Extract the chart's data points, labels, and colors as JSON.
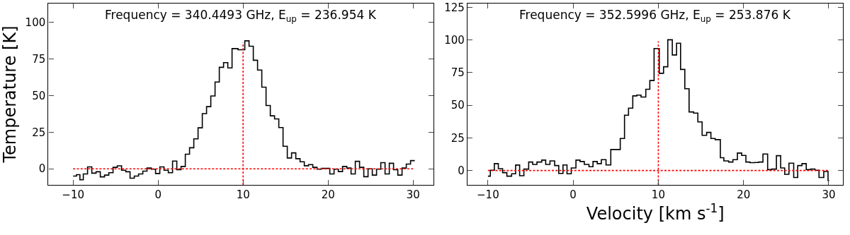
{
  "chart_data": [
    {
      "type": "step",
      "ylabel": "Temperature [K]",
      "annotations": [
        "Frequency = 340.4493 GHz, E$_{up}$ = 236.954 K"
      ],
      "xlim": [
        -12.9,
        32.4
      ],
      "ylim": [
        -11,
        113
      ],
      "xticks": [
        -10,
        0,
        10,
        20,
        30
      ],
      "yticks": [
        0,
        25,
        50,
        75,
        100
      ],
      "series": [
        {
          "color": "#000000",
          "x": [
            -10,
            -9.6,
            -9.2,
            -8.8,
            -8.3,
            -7.8,
            -7.3,
            -6.8,
            -6.3,
            -5.8,
            -5.3,
            -4.8,
            -4.3,
            -3.8,
            -3.3,
            -2.8,
            -2.3,
            -1.8,
            -1.3,
            -0.8,
            -0.3,
            0.2,
            0.7,
            1.2,
            1.7,
            2.2,
            2.7,
            3.2,
            3.7,
            4.2,
            4.7,
            5.2,
            5.7,
            6.2,
            6.7,
            7.2,
            7.7,
            8.2,
            8.7,
            9.4,
            10.2,
            10.7,
            11.2,
            11.7,
            12.2,
            12.7,
            13.2,
            13.7,
            14.2,
            14.7,
            15.2,
            15.7,
            16.2,
            16.7,
            17.2,
            17.7,
            18.2,
            18.7,
            19.2,
            19.7,
            20.2,
            20.7,
            21.2,
            21.7,
            22.2,
            22.7,
            23.2,
            23.7,
            24.2,
            24.7,
            25.2,
            25.7,
            26.2,
            26.7,
            27.2,
            27.7,
            28.2,
            28.7,
            29.2,
            29.7,
            30.2
          ],
          "values": [
            -5,
            -4,
            -7.5,
            -3.5,
            1.3,
            -3,
            -2,
            -5.5,
            -4.3,
            -2.7,
            1,
            2,
            -1,
            -2,
            -6.4,
            -5,
            -3.5,
            -1.6,
            0.5,
            -0.3,
            -3.2,
            1.3,
            -1,
            -2.7,
            5.3,
            -0.6,
            1.6,
            10,
            14.4,
            20.5,
            28,
            37.7,
            42.5,
            49.8,
            59.3,
            69.4,
            72.6,
            69,
            82.2,
            81.4,
            87.5,
            83.8,
            74.2,
            67.5,
            55.8,
            43.3,
            36.2,
            34.1,
            28.2,
            15.4,
            7.4,
            10.9,
            6.9,
            4.8,
            2.1,
            2.9,
            1,
            -0.3,
            0.3,
            0.3,
            -3.5,
            -0.3,
            -1.9,
            1.6,
            0.5,
            -3.5,
            5.1,
            1,
            -5.4,
            0,
            -4.3,
            -0.3,
            4.2,
            -3.5,
            3.8,
            -0.6,
            -4.3,
            0.5,
            3.2,
            5.6,
            5.6
          ]
        },
        {
          "type": "line",
          "color": "#ff0000",
          "line_style": "dotted",
          "x": [
            -10,
            30
          ],
          "values": [
            0,
            0
          ]
        },
        {
          "type": "line",
          "color": "#ff0000",
          "line_style": "dotted",
          "x": [
            10,
            10
          ],
          "values": [
            -11,
            86.5
          ]
        }
      ]
    },
    {
      "type": "step",
      "xlabel": "Velocity [km s$^{-1}$]",
      "annotations": [
        "Frequency = 352.5996 GHz, E$_{up}$ = 253.876 K"
      ],
      "xlim": [
        -12.4,
        31.7
      ],
      "ylim": [
        -11,
        128
      ],
      "xticks": [
        -10,
        0,
        10,
        20,
        30
      ],
      "yticks": [
        0,
        25,
        50,
        75,
        100,
        125
      ],
      "series": [
        {
          "color": "#000000",
          "x": [
            -10,
            -9.72,
            -9.25,
            -8.78,
            -8.28,
            -7.78,
            -7.22,
            -6.75,
            -6.28,
            -5.78,
            -5.22,
            -4.75,
            -4.25,
            -3.69,
            -3.22,
            -2.72,
            -2.17,
            -1.69,
            -1.19,
            -0.72,
            -0.22,
            0.33,
            0.81,
            1.31,
            1.86,
            2.33,
            2.83,
            3.31,
            3.86,
            4.42,
            5.06,
            5.53,
            6.03,
            6.5,
            7.0,
            7.47,
            7.97,
            8.53,
            9.0,
            9.5,
            10.11,
            10.61,
            11.11,
            11.64,
            12.14,
            12.61,
            13.11,
            13.61,
            14.14,
            14.64,
            15.14,
            15.67,
            16.17,
            16.67,
            17.28,
            17.69,
            18.25,
            18.75,
            19.28,
            19.78,
            20.28,
            20.75,
            21.31,
            21.78,
            22.28,
            22.83,
            23.31,
            23.86,
            24.36,
            24.83,
            25.33,
            25.89,
            26.36,
            26.86,
            27.36,
            27.89,
            28.39,
            28.86,
            29.42,
            29.92,
            30.06
          ],
          "values": [
            -4.3,
            0.2,
            5.3,
            1.4,
            -1.6,
            -4.3,
            -2.5,
            4.2,
            -4,
            1.1,
            6.5,
            4.7,
            6.5,
            8,
            4.7,
            7.4,
            3.8,
            -2.2,
            4.3,
            -2.5,
            2,
            8,
            6.9,
            4.7,
            2.9,
            6.9,
            5.3,
            8.3,
            4.3,
            16.1,
            16.1,
            24.6,
            42.4,
            47.8,
            57.2,
            57.8,
            56.3,
            62.3,
            69,
            93.5,
            74.5,
            79.5,
            100.2,
            88.6,
            97.6,
            77.5,
            62.7,
            44.9,
            44,
            37.3,
            27,
            29.2,
            24.6,
            23.7,
            9.8,
            7.4,
            6.5,
            8.3,
            13.4,
            11.6,
            6.5,
            6,
            6.2,
            6.5,
            12.7,
            0.7,
            1.1,
            11.4,
            2,
            -2.9,
            5.6,
            -5.3,
            3.8,
            5.3,
            0.7,
            1.1,
            0.2,
            -5.3,
            -0.7,
            -7.6,
            -7.6
          ]
        },
        {
          "type": "line",
          "color": "#ff0000",
          "line_style": "dotted",
          "x": [
            -10,
            30
          ],
          "values": [
            0,
            0
          ]
        },
        {
          "type": "line",
          "color": "#ff0000",
          "line_style": "dotted",
          "x": [
            10,
            10
          ],
          "values": [
            -11,
            99
          ]
        }
      ]
    }
  ]
}
